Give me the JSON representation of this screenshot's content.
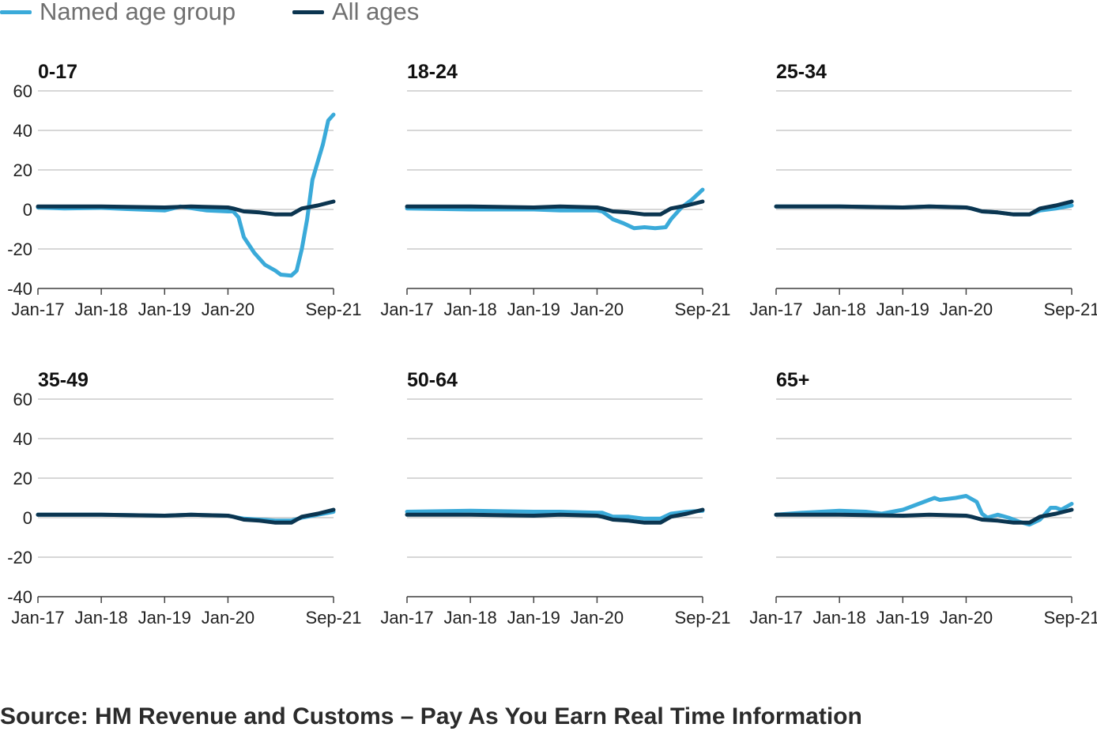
{
  "legend": {
    "named_label": "Named age group",
    "all_label": "All ages"
  },
  "colors": {
    "named": "#3aaad9",
    "all": "#0b3550",
    "grid": "#bfbfbf",
    "axis": "#444444"
  },
  "source": "Source: HM Revenue and Customs – Pay As You Earn Real Time Information",
  "chart_data": [
    {
      "type": "line",
      "title": "0-17",
      "xlim": [
        "2017-01",
        "2021-09"
      ],
      "ylim": [
        -40,
        60
      ],
      "yticks": [
        60,
        40,
        20,
        0,
        -20,
        -40
      ],
      "ytick_labels": [
        "60",
        "40",
        "20",
        "0",
        "-20",
        "-40"
      ],
      "xticks": [
        "2017-01",
        "2018-01",
        "2019-01",
        "2020-01",
        "2021-09"
      ],
      "xtick_labels": [
        "Jan-17",
        "Jan-18",
        "Jan-19",
        "Jan-20",
        "Sep-21"
      ],
      "show_yaxis_labels": true,
      "series": [
        {
          "name": "Named age group",
          "color": "#3aaad9",
          "points": [
            [
              "2017-01",
              1
            ],
            [
              "2017-06",
              0.5
            ],
            [
              "2018-01",
              0.8
            ],
            [
              "2018-06",
              0.2
            ],
            [
              "2019-01",
              -0.5
            ],
            [
              "2019-04",
              1.5
            ],
            [
              "2019-09",
              -0.5
            ],
            [
              "2020-01",
              -1
            ],
            [
              "2020-02",
              -1
            ],
            [
              "2020-03",
              -4
            ],
            [
              "2020-04",
              -14
            ],
            [
              "2020-06",
              -22
            ],
            [
              "2020-08",
              -28
            ],
            [
              "2020-10",
              -31
            ],
            [
              "2020-11",
              -33
            ],
            [
              "2021-01",
              -33.5
            ],
            [
              "2021-02",
              -31
            ],
            [
              "2021-03",
              -20
            ],
            [
              "2021-04",
              -5
            ],
            [
              "2021-05",
              15
            ],
            [
              "2021-07",
              33
            ],
            [
              "2021-08",
              45
            ],
            [
              "2021-09",
              48
            ]
          ]
        },
        {
          "name": "All ages",
          "color": "#0b3550",
          "points": [
            [
              "2017-01",
              1.5
            ],
            [
              "2018-01",
              1.5
            ],
            [
              "2019-01",
              1
            ],
            [
              "2019-06",
              1.5
            ],
            [
              "2020-01",
              1
            ],
            [
              "2020-02",
              0.5
            ],
            [
              "2020-04",
              -1
            ],
            [
              "2020-07",
              -1.5
            ],
            [
              "2020-10",
              -2.5
            ],
            [
              "2021-01",
              -2.5
            ],
            [
              "2021-03",
              0.5
            ],
            [
              "2021-06",
              2
            ],
            [
              "2021-09",
              4
            ]
          ]
        }
      ]
    },
    {
      "type": "line",
      "title": "18-24",
      "xlim": [
        "2017-01",
        "2021-09"
      ],
      "ylim": [
        -40,
        60
      ],
      "yticks": [
        60,
        40,
        20,
        0,
        -20,
        -40
      ],
      "ytick_labels": [
        "60",
        "40",
        "20",
        "0",
        "-20",
        "-40"
      ],
      "xticks": [
        "2017-01",
        "2018-01",
        "2019-01",
        "2020-01",
        "2021-09"
      ],
      "xtick_labels": [
        "Jan-17",
        "Jan-18",
        "Jan-19",
        "Jan-20",
        "Sep-21"
      ],
      "show_yaxis_labels": false,
      "series": [
        {
          "name": "Named age group",
          "color": "#3aaad9",
          "points": [
            [
              "2017-01",
              0.5
            ],
            [
              "2018-01",
              0
            ],
            [
              "2019-01",
              0
            ],
            [
              "2019-06",
              -0.5
            ],
            [
              "2020-01",
              -0.5
            ],
            [
              "2020-02",
              -1
            ],
            [
              "2020-04",
              -5
            ],
            [
              "2020-06",
              -7
            ],
            [
              "2020-08",
              -9.5
            ],
            [
              "2020-10",
              -9
            ],
            [
              "2020-12",
              -9.5
            ],
            [
              "2021-02",
              -9
            ],
            [
              "2021-03",
              -5
            ],
            [
              "2021-05",
              1
            ],
            [
              "2021-07",
              5
            ],
            [
              "2021-09",
              10
            ]
          ]
        },
        {
          "name": "All ages",
          "color": "#0b3550",
          "points": [
            [
              "2017-01",
              1.5
            ],
            [
              "2018-01",
              1.5
            ],
            [
              "2019-01",
              1
            ],
            [
              "2019-06",
              1.5
            ],
            [
              "2020-01",
              1
            ],
            [
              "2020-02",
              0.5
            ],
            [
              "2020-04",
              -1
            ],
            [
              "2020-07",
              -1.5
            ],
            [
              "2020-10",
              -2.5
            ],
            [
              "2021-01",
              -2.5
            ],
            [
              "2021-03",
              0.5
            ],
            [
              "2021-06",
              2
            ],
            [
              "2021-09",
              4
            ]
          ]
        }
      ]
    },
    {
      "type": "line",
      "title": "25-34",
      "xlim": [
        "2017-01",
        "2021-09"
      ],
      "ylim": [
        -40,
        60
      ],
      "yticks": [
        60,
        40,
        20,
        0,
        -20,
        -40
      ],
      "ytick_labels": [
        "60",
        "40",
        "20",
        "0",
        "-20",
        "-40"
      ],
      "xticks": [
        "2017-01",
        "2018-01",
        "2019-01",
        "2020-01",
        "2021-09"
      ],
      "xtick_labels": [
        "Jan-17",
        "Jan-18",
        "Jan-19",
        "Jan-20",
        "Sep-21"
      ],
      "show_yaxis_labels": false,
      "series": [
        {
          "name": "Named age group",
          "color": "#3aaad9",
          "points": [
            [
              "2017-01",
              1.5
            ],
            [
              "2018-01",
              1.5
            ],
            [
              "2019-01",
              1
            ],
            [
              "2019-06",
              1.5
            ],
            [
              "2020-01",
              1
            ],
            [
              "2020-02",
              0.5
            ],
            [
              "2020-04",
              -1
            ],
            [
              "2020-07",
              -1.5
            ],
            [
              "2020-10",
              -2.5
            ],
            [
              "2021-01",
              -2.5
            ],
            [
              "2021-03",
              -0.5
            ],
            [
              "2021-06",
              0.5
            ],
            [
              "2021-09",
              2
            ]
          ]
        },
        {
          "name": "All ages",
          "color": "#0b3550",
          "points": [
            [
              "2017-01",
              1.5
            ],
            [
              "2018-01",
              1.5
            ],
            [
              "2019-01",
              1
            ],
            [
              "2019-06",
              1.5
            ],
            [
              "2020-01",
              1
            ],
            [
              "2020-02",
              0.5
            ],
            [
              "2020-04",
              -1
            ],
            [
              "2020-07",
              -1.5
            ],
            [
              "2020-10",
              -2.5
            ],
            [
              "2021-01",
              -2.5
            ],
            [
              "2021-03",
              0.5
            ],
            [
              "2021-06",
              2
            ],
            [
              "2021-09",
              4
            ]
          ]
        }
      ]
    },
    {
      "type": "line",
      "title": "35-49",
      "xlim": [
        "2017-01",
        "2021-09"
      ],
      "ylim": [
        -40,
        60
      ],
      "yticks": [
        60,
        40,
        20,
        0,
        -20,
        -40
      ],
      "ytick_labels": [
        "60",
        "40",
        "20",
        "0",
        "-20",
        "-40"
      ],
      "xticks": [
        "2017-01",
        "2018-01",
        "2019-01",
        "2020-01",
        "2021-09"
      ],
      "xtick_labels": [
        "Jan-17",
        "Jan-18",
        "Jan-19",
        "Jan-20",
        "Sep-21"
      ],
      "show_yaxis_labels": true,
      "series": [
        {
          "name": "Named age group",
          "color": "#3aaad9",
          "points": [
            [
              "2017-01",
              1.5
            ],
            [
              "2018-01",
              1.5
            ],
            [
              "2019-01",
              1
            ],
            [
              "2019-06",
              1.5
            ],
            [
              "2020-01",
              1
            ],
            [
              "2020-02",
              0.5
            ],
            [
              "2020-04",
              -0.5
            ],
            [
              "2020-07",
              -1
            ],
            [
              "2020-10",
              -1.5
            ],
            [
              "2021-01",
              -1.5
            ],
            [
              "2021-03",
              0
            ],
            [
              "2021-06",
              1.5
            ],
            [
              "2021-09",
              3
            ]
          ]
        },
        {
          "name": "All ages",
          "color": "#0b3550",
          "points": [
            [
              "2017-01",
              1.5
            ],
            [
              "2018-01",
              1.5
            ],
            [
              "2019-01",
              1
            ],
            [
              "2019-06",
              1.5
            ],
            [
              "2020-01",
              1
            ],
            [
              "2020-02",
              0.5
            ],
            [
              "2020-04",
              -1
            ],
            [
              "2020-07",
              -1.5
            ],
            [
              "2020-10",
              -2.5
            ],
            [
              "2021-01",
              -2.5
            ],
            [
              "2021-03",
              0.5
            ],
            [
              "2021-06",
              2
            ],
            [
              "2021-09",
              4
            ]
          ]
        }
      ]
    },
    {
      "type": "line",
      "title": "50-64",
      "xlim": [
        "2017-01",
        "2021-09"
      ],
      "ylim": [
        -40,
        60
      ],
      "yticks": [
        60,
        40,
        20,
        0,
        -20,
        -40
      ],
      "ytick_labels": [
        "60",
        "40",
        "20",
        "0",
        "-20",
        "-40"
      ],
      "xticks": [
        "2017-01",
        "2018-01",
        "2019-01",
        "2020-01",
        "2021-09"
      ],
      "xtick_labels": [
        "Jan-17",
        "Jan-18",
        "Jan-19",
        "Jan-20",
        "Sep-21"
      ],
      "show_yaxis_labels": false,
      "series": [
        {
          "name": "Named age group",
          "color": "#3aaad9",
          "points": [
            [
              "2017-01",
              3
            ],
            [
              "2018-01",
              3.5
            ],
            [
              "2019-01",
              3
            ],
            [
              "2019-06",
              3
            ],
            [
              "2020-01",
              2.5
            ],
            [
              "2020-02",
              2.5
            ],
            [
              "2020-04",
              0.5
            ],
            [
              "2020-07",
              0.5
            ],
            [
              "2020-10",
              -0.5
            ],
            [
              "2021-01",
              -0.5
            ],
            [
              "2021-03",
              2
            ],
            [
              "2021-06",
              3
            ],
            [
              "2021-09",
              3.5
            ]
          ]
        },
        {
          "name": "All ages",
          "color": "#0b3550",
          "points": [
            [
              "2017-01",
              1.5
            ],
            [
              "2018-01",
              1.5
            ],
            [
              "2019-01",
              1
            ],
            [
              "2019-06",
              1.5
            ],
            [
              "2020-01",
              1
            ],
            [
              "2020-02",
              0.5
            ],
            [
              "2020-04",
              -1
            ],
            [
              "2020-07",
              -1.5
            ],
            [
              "2020-10",
              -2.5
            ],
            [
              "2021-01",
              -2.5
            ],
            [
              "2021-03",
              0.5
            ],
            [
              "2021-06",
              2
            ],
            [
              "2021-09",
              4
            ]
          ]
        }
      ]
    },
    {
      "type": "line",
      "title": "65+",
      "xlim": [
        "2017-01",
        "2021-09"
      ],
      "ylim": [
        -40,
        60
      ],
      "yticks": [
        60,
        40,
        20,
        0,
        -20,
        -40
      ],
      "ytick_labels": [
        "60",
        "40",
        "20",
        "0",
        "-20",
        "-40"
      ],
      "xticks": [
        "2017-01",
        "2018-01",
        "2019-01",
        "2020-01",
        "2021-09"
      ],
      "xtick_labels": [
        "Jan-17",
        "Jan-18",
        "Jan-19",
        "Jan-20",
        "Sep-21"
      ],
      "show_yaxis_labels": false,
      "series": [
        {
          "name": "Named age group",
          "color": "#3aaad9",
          "points": [
            [
              "2017-01",
              1.5
            ],
            [
              "2017-06",
              2.5
            ],
            [
              "2018-01",
              3.5
            ],
            [
              "2018-06",
              3
            ],
            [
              "2018-09",
              2
            ],
            [
              "2019-01",
              4
            ],
            [
              "2019-05",
              8
            ],
            [
              "2019-07",
              10
            ],
            [
              "2019-08",
              9
            ],
            [
              "2019-11",
              10
            ],
            [
              "2020-01",
              11
            ],
            [
              "2020-03",
              8
            ],
            [
              "2020-04",
              2
            ],
            [
              "2020-05",
              0
            ],
            [
              "2020-07",
              1.5
            ],
            [
              "2020-09",
              0
            ],
            [
              "2020-11",
              -2
            ],
            [
              "2021-01",
              -3.5
            ],
            [
              "2021-03",
              -1
            ],
            [
              "2021-05",
              5
            ],
            [
              "2021-06",
              5
            ],
            [
              "2021-07",
              4
            ],
            [
              "2021-09",
              7
            ]
          ]
        },
        {
          "name": "All ages",
          "color": "#0b3550",
          "points": [
            [
              "2017-01",
              1.5
            ],
            [
              "2018-01",
              1.5
            ],
            [
              "2019-01",
              1
            ],
            [
              "2019-06",
              1.5
            ],
            [
              "2020-01",
              1
            ],
            [
              "2020-02",
              0.5
            ],
            [
              "2020-04",
              -1
            ],
            [
              "2020-07",
              -1.5
            ],
            [
              "2020-10",
              -2.5
            ],
            [
              "2021-01",
              -2.5
            ],
            [
              "2021-03",
              0.5
            ],
            [
              "2021-06",
              2
            ],
            [
              "2021-09",
              4
            ]
          ]
        }
      ]
    }
  ]
}
